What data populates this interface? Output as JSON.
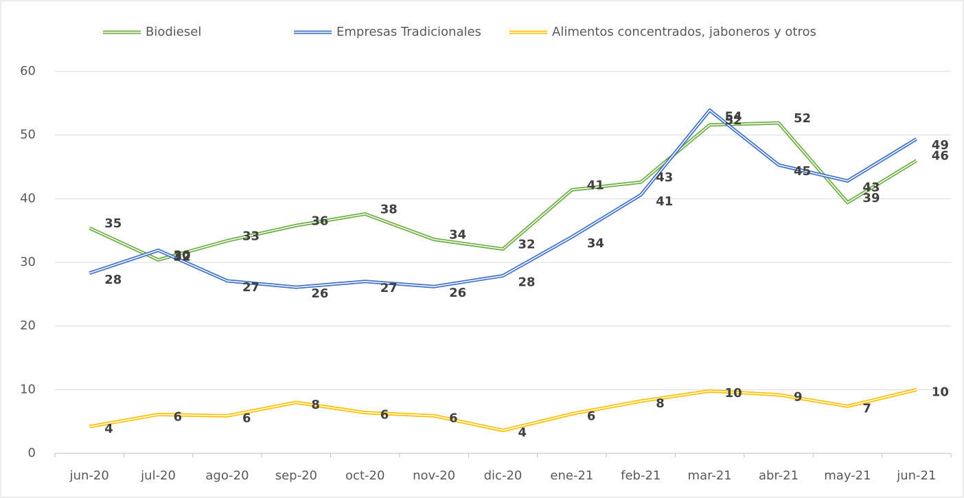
{
  "chart_data": {
    "type": "line",
    "categories": [
      "jun-20",
      "jul-20",
      "ago-20",
      "sep-20",
      "oct-20",
      "nov-20",
      "dic-20",
      "ene-21",
      "feb-21",
      "mar-21",
      "abr-21",
      "may-21",
      "jun-21"
    ],
    "series": [
      {
        "name": "Biodiesel",
        "color": "#70ad47",
        "values": [
          35.4,
          30.4,
          33.4,
          35.8,
          37.6,
          33.6,
          32.1,
          41.4,
          42.6,
          51.6,
          51.9,
          39.4,
          46.0
        ],
        "value_labels": [
          "35",
          "30",
          "33",
          "36",
          "38",
          "34",
          "32",
          "41",
          "43",
          "52",
          "52",
          "39",
          "46"
        ]
      },
      {
        "name": "Empresas Tradicionales",
        "color": "#4472c4",
        "values": [
          28.3,
          31.9,
          27.1,
          26.1,
          27.0,
          26.2,
          27.9,
          34.0,
          40.6,
          53.9,
          45.3,
          42.8,
          49.4
        ],
        "value_labels": [
          "28",
          "32",
          "27",
          "26",
          "27",
          "26",
          "28",
          "34",
          "41",
          "54",
          "45",
          "43",
          "49"
        ]
      },
      {
        "name": "Alimentos concentrados, jaboneros y otros",
        "color": "#ffc000",
        "values": [
          4.2,
          6.1,
          5.9,
          8.0,
          6.4,
          5.9,
          3.6,
          6.2,
          8.2,
          9.8,
          9.2,
          7.4,
          10.0
        ],
        "value_labels": [
          "4",
          "6",
          "6",
          "8",
          "6",
          "6",
          "4",
          "6",
          "8",
          "10",
          "9",
          "7",
          "10"
        ]
      }
    ],
    "ylim": [
      0,
      60
    ],
    "yticks": [
      0,
      10,
      20,
      30,
      40,
      50,
      60
    ],
    "grid": true,
    "legend": "top"
  }
}
